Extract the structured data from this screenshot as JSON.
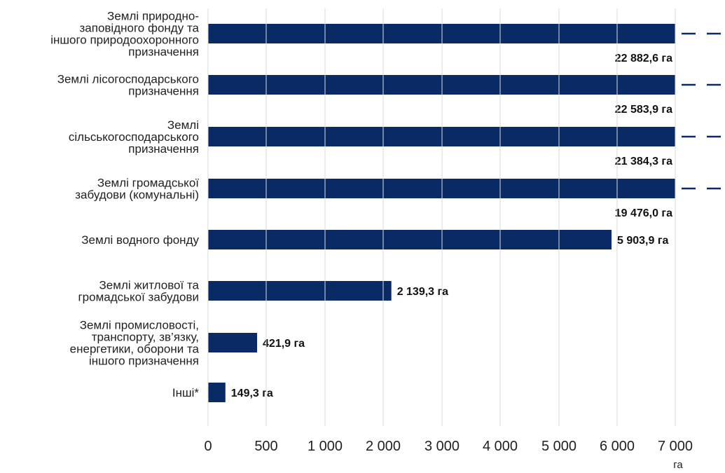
{
  "chart_data": {
    "type": "bar",
    "orientation": "horizontal",
    "bar_color": "#0a2a66",
    "axis_break": "dashed",
    "categories": [
      [
        "Землі природно-",
        "заповідного фонду та",
        "іншого природоохоронного",
        "призначення"
      ],
      [
        "Землі лісогосподарського",
        "призначення"
      ],
      [
        "Землі",
        "сільськогосподарського",
        "призначення"
      ],
      [
        "Землі громадської",
        "забудови (комунальні)"
      ],
      [
        "Землі водного фонду"
      ],
      [
        "Землі житлової та",
        "громадської забудови"
      ],
      [
        "Землі промисловості,",
        "транспорту, зв’язку,",
        "енергетики, оборони та",
        "іншого призначення"
      ],
      [
        "Інші*"
      ]
    ],
    "values": [
      22882.6,
      22583.9,
      21384.3,
      19476.0,
      5903.9,
      2139.3,
      421.9,
      149.3
    ],
    "data_labels": [
      "22 882,6 га",
      "22 583,9 га",
      "21 384,3 га",
      "19 476,0 га",
      "5 903,9 га",
      "2 139,3 га",
      "421,9 га",
      "149,3 га"
    ],
    "xlim": [
      0,
      7000
    ],
    "x_ticks": [
      0,
      500,
      1000,
      2000,
      3000,
      4000,
      5000,
      6000,
      7000
    ],
    "x_tick_labels": [
      "0",
      "500",
      "1 000",
      "2 000",
      "3 000",
      "4 000",
      "5 000",
      "6 000",
      "7 000"
    ],
    "xlabel": "га",
    "grid": false
  }
}
